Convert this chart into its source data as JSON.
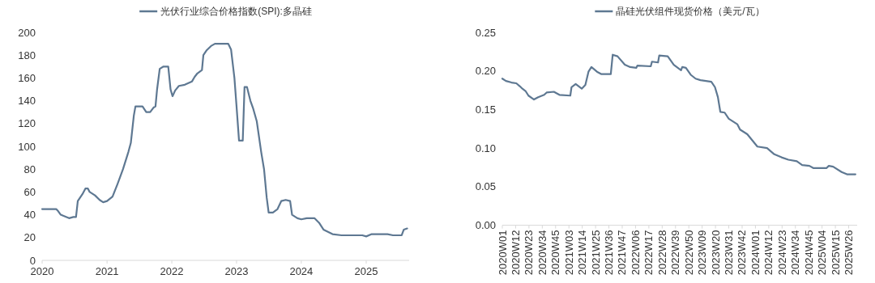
{
  "chart_data": [
    {
      "type": "line",
      "legend": "top",
      "grid": false,
      "xlim": [
        "2020-01-01",
        "2025-08-31"
      ],
      "ylim": [
        0,
        200
      ],
      "yticks": [
        0,
        20,
        40,
        60,
        80,
        100,
        120,
        140,
        160,
        180,
        200
      ],
      "xticks": [
        {
          "value": "2020-01-01",
          "label": "2020"
        },
        {
          "value": "2021-01-01",
          "label": "2021"
        },
        {
          "value": "2022-01-01",
          "label": "2022"
        },
        {
          "value": "2023-01-01",
          "label": "2023"
        },
        {
          "value": "2024-01-01",
          "label": "2024"
        },
        {
          "value": "2025-01-01",
          "label": "2025"
        }
      ],
      "series": [
        {
          "name": "光伏行业综合价格指数(SPI):多晶硅",
          "color": "#5e7892",
          "x": [
            "2020-01-01",
            "2020-03-20",
            "2020-04-01",
            "2020-04-15",
            "2020-05-01",
            "2020-06-01",
            "2020-06-25",
            "2020-07-10",
            "2020-07-20",
            "2020-08-15",
            "2020-09-01",
            "2020-09-15",
            "2020-09-25",
            "2020-10-25",
            "2020-11-20",
            "2020-12-10",
            "2021-01-01",
            "2021-02-01",
            "2021-03-01",
            "2021-04-01",
            "2021-05-01",
            "2021-05-15",
            "2021-06-01",
            "2021-06-10",
            "2021-07-20",
            "2021-08-10",
            "2021-09-01",
            "2021-09-20",
            "2021-10-01",
            "2021-10-10",
            "2021-10-25",
            "2021-11-15",
            "2021-12-12",
            "2021-12-25",
            "2022-01-05",
            "2022-01-20",
            "2022-02-10",
            "2022-03-15",
            "2022-04-25",
            "2022-05-10",
            "2022-05-25",
            "2022-06-20",
            "2022-06-28",
            "2022-07-15",
            "2022-08-10",
            "2022-09-01",
            "2022-11-15",
            "2022-12-01",
            "2022-12-20",
            "2023-01-01",
            "2023-01-15",
            "2023-02-05",
            "2023-02-15",
            "2023-03-01",
            "2023-03-20",
            "2023-04-05",
            "2023-04-25",
            "2023-05-20",
            "2023-06-05",
            "2023-06-20",
            "2023-07-01",
            "2023-07-25",
            "2023-08-20",
            "2023-09-10",
            "2023-10-05",
            "2023-10-30",
            "2023-11-10",
            "2023-12-10",
            "2024-01-01",
            "2024-02-01",
            "2024-03-15",
            "2024-04-10",
            "2024-05-05",
            "2024-06-25",
            "2024-08-15",
            "2024-12-10",
            "2025-01-01",
            "2025-02-01",
            "2025-05-01",
            "2025-06-01",
            "2025-07-20",
            "2025-08-01",
            "2025-08-20"
          ],
          "values": [
            45,
            45,
            43,
            40,
            39,
            37,
            38,
            38,
            52,
            58,
            63,
            63,
            60,
            57,
            53,
            51,
            52,
            56,
            67,
            80,
            95,
            103,
            127,
            135,
            135,
            130,
            130,
            134,
            135,
            150,
            168,
            170,
            170,
            150,
            144,
            149,
            153,
            154,
            157,
            161,
            164,
            167,
            180,
            184,
            188,
            190,
            190,
            185,
            160,
            135,
            105,
            105,
            152,
            152,
            140,
            133,
            122,
            95,
            80,
            55,
            42,
            42,
            45,
            52,
            53,
            52,
            40,
            37,
            36,
            37,
            37,
            33,
            27,
            23,
            22,
            22,
            21,
            23,
            23,
            22,
            22,
            27,
            28
          ]
        }
      ]
    },
    {
      "type": "line",
      "legend": "top",
      "grid": false,
      "xlim": [
        "2020-01-02",
        "2025-08-14"
      ],
      "ylim": [
        0,
        0.25
      ],
      "yticks": [
        {
          "value": 0,
          "label": "0.00"
        },
        {
          "value": 0.05,
          "label": "0.05"
        },
        {
          "value": 0.1,
          "label": "0.10"
        },
        {
          "value": 0.15,
          "label": "0.15"
        },
        {
          "value": 0.2,
          "label": "0.20"
        },
        {
          "value": 0.25,
          "label": "0.25"
        }
      ],
      "xticks": [
        {
          "value": "2020-01-02",
          "label": "2020W01"
        },
        {
          "value": "2020-03-19",
          "label": "2020W12"
        },
        {
          "value": "2020-06-04",
          "label": "2020W23"
        },
        {
          "value": "2020-08-20",
          "label": "2020W34"
        },
        {
          "value": "2020-11-05",
          "label": "2020W45"
        },
        {
          "value": "2021-01-21",
          "label": "2021W03"
        },
        {
          "value": "2021-04-08",
          "label": "2021W14"
        },
        {
          "value": "2021-06-24",
          "label": "2021W25"
        },
        {
          "value": "2021-09-09",
          "label": "2021W36"
        },
        {
          "value": "2021-11-25",
          "label": "2021W47"
        },
        {
          "value": "2022-02-10",
          "label": "2022W06"
        },
        {
          "value": "2022-04-28",
          "label": "2022W17"
        },
        {
          "value": "2022-07-14",
          "label": "2022W28"
        },
        {
          "value": "2022-09-29",
          "label": "2022W39"
        },
        {
          "value": "2022-12-15",
          "label": "2022W50"
        },
        {
          "value": "2023-03-02",
          "label": "2023W09"
        },
        {
          "value": "2023-05-18",
          "label": "2023W20"
        },
        {
          "value": "2023-08-03",
          "label": "2023W31"
        },
        {
          "value": "2023-10-19",
          "label": "2023W42"
        },
        {
          "value": "2024-01-04",
          "label": "2024W01"
        },
        {
          "value": "2024-03-21",
          "label": "2024W12"
        },
        {
          "value": "2024-06-06",
          "label": "2024W23"
        },
        {
          "value": "2024-08-22",
          "label": "2024W34"
        },
        {
          "value": "2024-11-07",
          "label": "2024W45"
        },
        {
          "value": "2025-01-23",
          "label": "2025W04"
        },
        {
          "value": "2025-04-10",
          "label": "2025W15"
        },
        {
          "value": "2025-06-26",
          "label": "2025W26"
        }
      ],
      "series": [
        {
          "name": "晶硅光伏组件现货价格（美元/瓦）",
          "color": "#5e7892",
          "x": [
            "2020-01-02",
            "2020-01-23",
            "2020-02-24",
            "2020-03-23",
            "2020-04-13",
            "2020-04-27",
            "2020-05-15",
            "2020-06-01",
            "2020-07-03",
            "2020-07-27",
            "2020-08-31",
            "2020-09-14",
            "2020-10-26",
            "2020-11-27",
            "2021-01-29",
            "2021-02-05",
            "2021-03-01",
            "2021-04-05",
            "2021-04-26",
            "2021-05-14",
            "2021-05-31",
            "2021-07-02",
            "2021-07-26",
            "2021-09-20",
            "2021-10-01",
            "2021-10-29",
            "2021-12-10",
            "2022-01-10",
            "2022-02-14",
            "2022-02-21",
            "2022-05-09",
            "2022-05-16",
            "2022-06-20",
            "2022-06-27",
            "2022-08-15",
            "2022-09-19",
            "2022-10-31",
            "2022-11-07",
            "2022-11-28",
            "2022-12-26",
            "2023-01-23",
            "2023-02-20",
            "2023-04-24",
            "2023-05-15",
            "2023-06-01",
            "2023-06-15",
            "2023-07-10",
            "2023-08-03",
            "2023-09-21",
            "2023-10-07",
            "2023-11-18",
            "2024-01-15",
            "2024-03-11",
            "2024-04-22",
            "2024-06-03",
            "2024-07-12",
            "2024-08-30",
            "2024-09-30",
            "2024-11-11",
            "2024-12-05",
            "2025-02-17",
            "2025-03-03",
            "2025-03-28",
            "2025-05-16",
            "2025-06-16",
            "2025-08-04"
          ],
          "values": [
            0.19,
            0.187,
            0.185,
            0.184,
            0.18,
            0.177,
            0.174,
            0.168,
            0.163,
            0.166,
            0.169,
            0.172,
            0.173,
            0.169,
            0.168,
            0.179,
            0.183,
            0.177,
            0.182,
            0.199,
            0.205,
            0.199,
            0.196,
            0.196,
            0.221,
            0.219,
            0.208,
            0.205,
            0.204,
            0.207,
            0.206,
            0.212,
            0.211,
            0.22,
            0.219,
            0.208,
            0.201,
            0.205,
            0.204,
            0.195,
            0.19,
            0.188,
            0.186,
            0.179,
            0.166,
            0.147,
            0.146,
            0.138,
            0.131,
            0.124,
            0.118,
            0.102,
            0.1,
            0.092,
            0.088,
            0.085,
            0.083,
            0.078,
            0.077,
            0.074,
            0.074,
            0.077,
            0.076,
            0.069,
            0.066,
            0.066
          ]
        }
      ]
    }
  ]
}
